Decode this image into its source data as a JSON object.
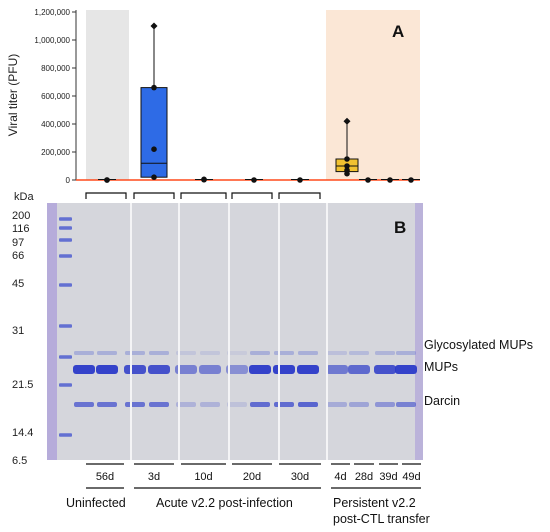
{
  "chart_data": [
    {
      "type": "box",
      "panel_label": "A",
      "ylabel": "Viral titer (PFU)",
      "ylim": [
        0,
        1200000
      ],
      "yticks": [
        0,
        200000,
        400000,
        600000,
        800000,
        1000000,
        1200000
      ],
      "ytick_labels": [
        "0",
        "200,000",
        "400,000",
        "600,000",
        "800,000",
        "1,000,000",
        "1,200,000"
      ],
      "groups": [
        {
          "id": "56d",
          "box": null,
          "points": [
            0,
            0
          ]
        },
        {
          "id": "3d",
          "box": {
            "q1": 20000,
            "median": 120000,
            "q3": 660000,
            "min": 5000,
            "max": 1100000
          },
          "points": [
            1100000,
            660000,
            220000,
            20000
          ]
        },
        {
          "id": "10d",
          "box": null,
          "points": [
            5000,
            2000
          ]
        },
        {
          "id": "20d",
          "box": null,
          "points": [
            0
          ]
        },
        {
          "id": "30d",
          "box": null,
          "points": [
            0
          ]
        },
        {
          "id": "4d",
          "box": {
            "q1": 60000,
            "median": 100000,
            "q3": 150000,
            "min": 40000,
            "max": 420000
          },
          "points": [
            420000,
            150000,
            100000,
            70000,
            45000
          ]
        },
        {
          "id": "28d",
          "box": null,
          "points": [
            0
          ]
        },
        {
          "id": "39d",
          "box": null,
          "points": [
            0
          ]
        },
        {
          "id": "49d",
          "box": null,
          "points": [
            0
          ]
        }
      ],
      "colors": {
        "acute_box": "#2e6be6",
        "persistent_box": "#f2c230",
        "uninfected_shade": "#e6e6e6",
        "persistent_shade": "#fbe7d6",
        "axis_red": "#ff4a1c"
      }
    },
    {
      "type": "gel",
      "panel_label": "B",
      "unit_label": "kDa",
      "mw_markers": [
        "200",
        "116",
        "97",
        "66",
        "45",
        "31",
        "21.5",
        "14.4",
        "6.5"
      ],
      "band_labels": [
        "Glycosylated MUPs",
        "MUPs",
        "Darcin"
      ],
      "lane_groups": [
        "56d",
        "3d",
        "10d",
        "20d",
        "30d"
      ],
      "persistent_lanes": [
        "4d",
        "28d",
        "39d",
        "49d"
      ],
      "group_labels": [
        "Uninfected",
        "Acute v2.2 post-infection",
        "Persistent v2.2",
        "post-CTL transfer"
      ],
      "lane_intensity": [
        {
          "mups": 0.95,
          "darcin": 0.7,
          "glyco": 0.35
        },
        {
          "mups": 0.95,
          "darcin": 0.7,
          "glyco": 0.35
        },
        {
          "mups": 0.85,
          "darcin": 0.7,
          "glyco": 0.35
        },
        {
          "mups": 0.85,
          "darcin": 0.7,
          "glyco": 0.35
        },
        {
          "mups": 0.55,
          "darcin": 0.25,
          "glyco": 0.15
        },
        {
          "mups": 0.55,
          "darcin": 0.25,
          "glyco": 0.15
        },
        {
          "mups": 0.45,
          "darcin": 0.15,
          "glyco": 0.1
        },
        {
          "mups": 0.95,
          "darcin": 0.75,
          "glyco": 0.35
        },
        {
          "mups": 0.95,
          "darcin": 0.75,
          "glyco": 0.35
        },
        {
          "mups": 0.95,
          "darcin": 0.8,
          "glyco": 0.35
        },
        {
          "mups": 0.6,
          "darcin": 0.3,
          "glyco": 0.2
        },
        {
          "mups": 0.7,
          "darcin": 0.35,
          "glyco": 0.25
        },
        {
          "mups": 0.85,
          "darcin": 0.45,
          "glyco": 0.3
        },
        {
          "mups": 0.95,
          "darcin": 0.6,
          "glyco": 0.35
        }
      ]
    }
  ]
}
